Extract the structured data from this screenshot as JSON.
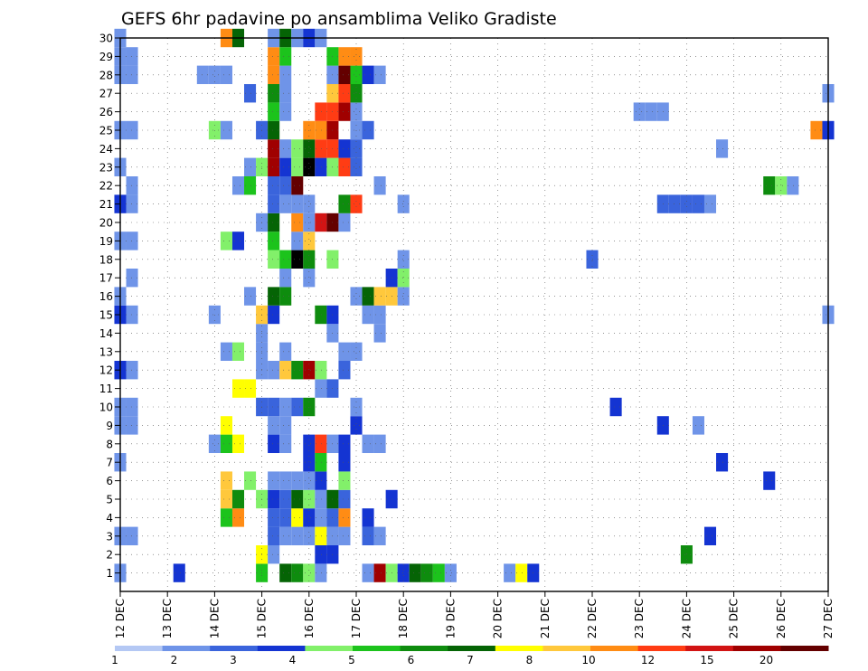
{
  "chart_data": {
    "type": "heatmap",
    "title": "GEFS 6hr padavine po ansamblima Veliko Gradiste",
    "xlabel": "",
    "ylabel": "",
    "x_tick_labels": [
      "12 DEC",
      "13 DEC",
      "14 DEC",
      "15 DEC",
      "16 DEC",
      "17 DEC",
      "18 DEC",
      "19 DEC",
      "20 DEC",
      "21 DEC",
      "22 DEC",
      "23 DEC",
      "24 DEC",
      "25 DEC",
      "26 DEC",
      "27 DEC"
    ],
    "y_tick_labels": [
      "1",
      "2",
      "3",
      "4",
      "5",
      "6",
      "7",
      "8",
      "9",
      "10",
      "11",
      "12",
      "13",
      "14",
      "15",
      "16",
      "17",
      "18",
      "19",
      "20",
      "21",
      "22",
      "23",
      "24",
      "25",
      "26",
      "27",
      "28",
      "29",
      "30"
    ],
    "x_range": [
      "12 DEC 00Z",
      "27 DEC 00Z"
    ],
    "time_step_hours": 6,
    "ylim": [
      0,
      30
    ],
    "grid": true,
    "colorbar": {
      "position": "bottom",
      "labels": [
        "1",
        "2",
        "3",
        "4",
        "5",
        "6",
        "7",
        "8",
        "10",
        "12",
        "15",
        "20"
      ],
      "colors": [
        "#b4c8f4",
        "#6f94e8",
        "#3a64dc",
        "#1434d2",
        "#82f06a",
        "#1cc31c",
        "#0e8c0e",
        "#056405",
        "#ffff00",
        "#ffc83c",
        "#ff8c14",
        "#ff3c14",
        "#d21414",
        "#a00000",
        "#640000"
      ]
    },
    "cells": [
      [
        1,
        0,
        1
      ],
      [
        1,
        5,
        3
      ],
      [
        1,
        12,
        5
      ],
      [
        1,
        14,
        7
      ],
      [
        1,
        15,
        6
      ],
      [
        1,
        16,
        4
      ],
      [
        1,
        17,
        1
      ],
      [
        1,
        21,
        1
      ],
      [
        1,
        22,
        13
      ],
      [
        1,
        23,
        4
      ],
      [
        1,
        24,
        3
      ],
      [
        1,
        25,
        7
      ],
      [
        1,
        26,
        6
      ],
      [
        1,
        27,
        5
      ],
      [
        1,
        28,
        1
      ],
      [
        1,
        33,
        1
      ],
      [
        1,
        34,
        8
      ],
      [
        1,
        35,
        3
      ],
      [
        2,
        12,
        8
      ],
      [
        2,
        13,
        1
      ],
      [
        2,
        17,
        3
      ],
      [
        2,
        18,
        3
      ],
      [
        2,
        48,
        6
      ],
      [
        3,
        0,
        1
      ],
      [
        3,
        1,
        1
      ],
      [
        3,
        13,
        2
      ],
      [
        3,
        14,
        1
      ],
      [
        3,
        15,
        1
      ],
      [
        3,
        16,
        1
      ],
      [
        3,
        17,
        8
      ],
      [
        3,
        18,
        1
      ],
      [
        3,
        19,
        1
      ],
      [
        3,
        21,
        2
      ],
      [
        3,
        22,
        1
      ],
      [
        3,
        50,
        3
      ],
      [
        4,
        9,
        5
      ],
      [
        4,
        10,
        10
      ],
      [
        4,
        13,
        2
      ],
      [
        4,
        14,
        2
      ],
      [
        4,
        15,
        8
      ],
      [
        4,
        16,
        3
      ],
      [
        4,
        17,
        1
      ],
      [
        4,
        18,
        2
      ],
      [
        4,
        19,
        10
      ],
      [
        4,
        21,
        3
      ],
      [
        5,
        9,
        9
      ],
      [
        5,
        10,
        6
      ],
      [
        5,
        12,
        4
      ],
      [
        5,
        13,
        3
      ],
      [
        5,
        14,
        2
      ],
      [
        5,
        15,
        7
      ],
      [
        5,
        16,
        4
      ],
      [
        5,
        17,
        1
      ],
      [
        5,
        18,
        7
      ],
      [
        5,
        19,
        2
      ],
      [
        5,
        23,
        3
      ],
      [
        6,
        9,
        9
      ],
      [
        6,
        11,
        4
      ],
      [
        6,
        13,
        1
      ],
      [
        6,
        14,
        1
      ],
      [
        6,
        15,
        1
      ],
      [
        6,
        16,
        1
      ],
      [
        6,
        17,
        3
      ],
      [
        6,
        19,
        4
      ],
      [
        6,
        55,
        3
      ],
      [
        7,
        0,
        1
      ],
      [
        7,
        16,
        3
      ],
      [
        7,
        17,
        5
      ],
      [
        7,
        19,
        3
      ],
      [
        7,
        51,
        3
      ],
      [
        8,
        8,
        1
      ],
      [
        8,
        9,
        5
      ],
      [
        8,
        10,
        8
      ],
      [
        8,
        13,
        3
      ],
      [
        8,
        14,
        1
      ],
      [
        8,
        16,
        3
      ],
      [
        8,
        17,
        11
      ],
      [
        8,
        18,
        1
      ],
      [
        8,
        19,
        3
      ],
      [
        8,
        21,
        1
      ],
      [
        8,
        22,
        1
      ],
      [
        9,
        0,
        1
      ],
      [
        9,
        1,
        1
      ],
      [
        9,
        9,
        8
      ],
      [
        9,
        13,
        1
      ],
      [
        9,
        14,
        1
      ],
      [
        9,
        20,
        3
      ],
      [
        9,
        46,
        3
      ],
      [
        9,
        49,
        1
      ],
      [
        10,
        0,
        1
      ],
      [
        10,
        1,
        1
      ],
      [
        10,
        12,
        2
      ],
      [
        10,
        13,
        2
      ],
      [
        10,
        14,
        1
      ],
      [
        10,
        15,
        2
      ],
      [
        10,
        16,
        6
      ],
      [
        10,
        20,
        1
      ],
      [
        10,
        42,
        3
      ],
      [
        11,
        10,
        8
      ],
      [
        11,
        11,
        8
      ],
      [
        11,
        17,
        1
      ],
      [
        11,
        18,
        2
      ],
      [
        12,
        0,
        3
      ],
      [
        12,
        1,
        1
      ],
      [
        12,
        12,
        1
      ],
      [
        12,
        13,
        1
      ],
      [
        12,
        14,
        9
      ],
      [
        12,
        15,
        6
      ],
      [
        12,
        16,
        13
      ],
      [
        12,
        17,
        4
      ],
      [
        12,
        19,
        2
      ],
      [
        13,
        9,
        1
      ],
      [
        13,
        10,
        4
      ],
      [
        13,
        12,
        1
      ],
      [
        13,
        14,
        1
      ],
      [
        13,
        19,
        1
      ],
      [
        13,
        20,
        1
      ],
      [
        14,
        12,
        1
      ],
      [
        14,
        18,
        1
      ],
      [
        14,
        22,
        1
      ],
      [
        15,
        0,
        3
      ],
      [
        15,
        1,
        1
      ],
      [
        15,
        8,
        1
      ],
      [
        15,
        12,
        9
      ],
      [
        15,
        13,
        3
      ],
      [
        15,
        17,
        6
      ],
      [
        15,
        18,
        3
      ],
      [
        15,
        21,
        1
      ],
      [
        15,
        22,
        1
      ],
      [
        15,
        60,
        1
      ],
      [
        16,
        0,
        1
      ],
      [
        16,
        11,
        1
      ],
      [
        16,
        13,
        7
      ],
      [
        16,
        14,
        6
      ],
      [
        16,
        20,
        1
      ],
      [
        16,
        21,
        7
      ],
      [
        16,
        22,
        9
      ],
      [
        16,
        23,
        9
      ],
      [
        16,
        24,
        1
      ],
      [
        17,
        1,
        1
      ],
      [
        17,
        14,
        1
      ],
      [
        17,
        16,
        1
      ],
      [
        17,
        23,
        3
      ],
      [
        17,
        24,
        4
      ],
      [
        18,
        13,
        4
      ],
      [
        18,
        14,
        5
      ],
      [
        18,
        15,
        15
      ],
      [
        18,
        16,
        6
      ],
      [
        18,
        18,
        4
      ],
      [
        18,
        24,
        1
      ],
      [
        18,
        40,
        2
      ],
      [
        19,
        0,
        1
      ],
      [
        19,
        1,
        1
      ],
      [
        19,
        9,
        4
      ],
      [
        19,
        10,
        3
      ],
      [
        19,
        13,
        5
      ],
      [
        19,
        15,
        1
      ],
      [
        19,
        16,
        9
      ],
      [
        20,
        12,
        1
      ],
      [
        20,
        13,
        7
      ],
      [
        20,
        15,
        10
      ],
      [
        20,
        16,
        1
      ],
      [
        20,
        17,
        12
      ],
      [
        20,
        18,
        14
      ],
      [
        20,
        19,
        1
      ],
      [
        21,
        0,
        3
      ],
      [
        21,
        1,
        1
      ],
      [
        21,
        13,
        2
      ],
      [
        21,
        14,
        1
      ],
      [
        21,
        15,
        1
      ],
      [
        21,
        16,
        1
      ],
      [
        21,
        19,
        6
      ],
      [
        21,
        20,
        11
      ],
      [
        21,
        24,
        1
      ],
      [
        21,
        46,
        2
      ],
      [
        21,
        47,
        2
      ],
      [
        21,
        48,
        2
      ],
      [
        21,
        49,
        2
      ],
      [
        21,
        50,
        1
      ],
      [
        22,
        1,
        1
      ],
      [
        22,
        10,
        1
      ],
      [
        22,
        11,
        5
      ],
      [
        22,
        13,
        2
      ],
      [
        22,
        14,
        2
      ],
      [
        22,
        15,
        14
      ],
      [
        22,
        22,
        1
      ],
      [
        22,
        55,
        6
      ],
      [
        22,
        56,
        4
      ],
      [
        22,
        57,
        1
      ],
      [
        23,
        0,
        1
      ],
      [
        23,
        11,
        1
      ],
      [
        23,
        12,
        4
      ],
      [
        23,
        13,
        13
      ],
      [
        23,
        14,
        3
      ],
      [
        23,
        15,
        4
      ],
      [
        23,
        16,
        15
      ],
      [
        23,
        17,
        3
      ],
      [
        23,
        18,
        4
      ],
      [
        23,
        19,
        11
      ],
      [
        23,
        20,
        2
      ],
      [
        24,
        13,
        13
      ],
      [
        24,
        14,
        1
      ],
      [
        24,
        15,
        4
      ],
      [
        24,
        16,
        7
      ],
      [
        24,
        17,
        11
      ],
      [
        24,
        18,
        11
      ],
      [
        24,
        19,
        3
      ],
      [
        24,
        20,
        2
      ],
      [
        24,
        51,
        1
      ],
      [
        25,
        0,
        1
      ],
      [
        25,
        1,
        1
      ],
      [
        25,
        8,
        4
      ],
      [
        25,
        9,
        1
      ],
      [
        25,
        12,
        2
      ],
      [
        25,
        13,
        7
      ],
      [
        25,
        16,
        10
      ],
      [
        25,
        17,
        10
      ],
      [
        25,
        18,
        13
      ],
      [
        25,
        20,
        1
      ],
      [
        25,
        21,
        2
      ],
      [
        25,
        59,
        10
      ],
      [
        25,
        60,
        3
      ],
      [
        26,
        13,
        5
      ],
      [
        26,
        14,
        1
      ],
      [
        26,
        17,
        11
      ],
      [
        26,
        18,
        11
      ],
      [
        26,
        19,
        13
      ],
      [
        26,
        20,
        1
      ],
      [
        26,
        44,
        1
      ],
      [
        26,
        45,
        1
      ],
      [
        26,
        46,
        1
      ],
      [
        27,
        11,
        2
      ],
      [
        27,
        13,
        6
      ],
      [
        27,
        14,
        1
      ],
      [
        27,
        18,
        9
      ],
      [
        27,
        19,
        11
      ],
      [
        27,
        20,
        6
      ],
      [
        27,
        60,
        1
      ],
      [
        28,
        0,
        1
      ],
      [
        28,
        1,
        1
      ],
      [
        28,
        7,
        1
      ],
      [
        28,
        8,
        1
      ],
      [
        28,
        9,
        1
      ],
      [
        28,
        13,
        10
      ],
      [
        28,
        14,
        1
      ],
      [
        28,
        18,
        1
      ],
      [
        28,
        19,
        14
      ],
      [
        28,
        20,
        5
      ],
      [
        28,
        21,
        3
      ],
      [
        28,
        22,
        1
      ],
      [
        29,
        0,
        1
      ],
      [
        29,
        1,
        1
      ],
      [
        29,
        13,
        10
      ],
      [
        29,
        14,
        5
      ],
      [
        29,
        18,
        5
      ],
      [
        29,
        19,
        10
      ],
      [
        29,
        20,
        10
      ],
      [
        30,
        0,
        1
      ],
      [
        30,
        9,
        10
      ],
      [
        30,
        10,
        7
      ],
      [
        30,
        13,
        1
      ],
      [
        30,
        14,
        7
      ],
      [
        30,
        15,
        1
      ],
      [
        30,
        16,
        3
      ],
      [
        30,
        17,
        1
      ]
    ]
  }
}
